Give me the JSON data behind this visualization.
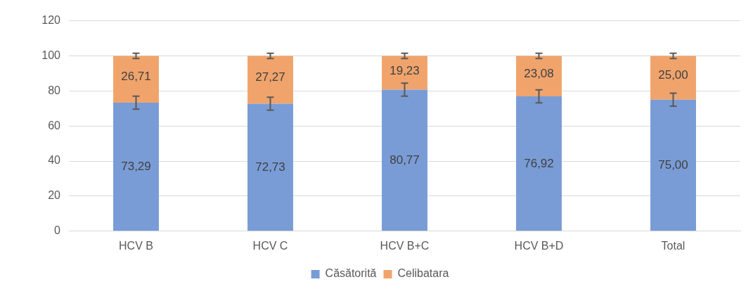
{
  "chart_data": {
    "type": "bar",
    "stacked": true,
    "categories": [
      "HCV B",
      "HCV C",
      "HCV B+C",
      "HCV B+D",
      "Total"
    ],
    "series": [
      {
        "name": "Căsătorită",
        "color": "#7a9cd6",
        "values": [
          73.29,
          72.73,
          80.77,
          76.92,
          75.0
        ],
        "errors": [
          3.7,
          3.7,
          3.7,
          3.7,
          3.7
        ],
        "value_labels": [
          "73,29",
          "72,73",
          "80,77",
          "76,92",
          "75,00"
        ]
      },
      {
        "name": "Celibatara",
        "color": "#f0a46c",
        "values": [
          26.71,
          27.27,
          19.23,
          23.08,
          25.0
        ],
        "errors": [
          1.5,
          1.5,
          1.5,
          1.5,
          1.5
        ],
        "value_labels": [
          "26,71",
          "27,27",
          "19,23",
          "23,08",
          "25,00"
        ]
      }
    ],
    "ylim": [
      0,
      120
    ],
    "yticks": [
      0,
      20,
      40,
      60,
      80,
      100,
      120
    ],
    "grid": "y",
    "legend": "bottom"
  }
}
